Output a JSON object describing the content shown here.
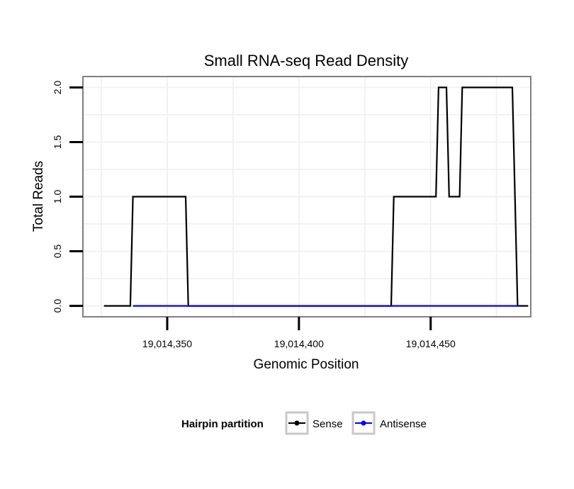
{
  "chart_data": {
    "type": "line",
    "title": "Small RNA-seq Read Density",
    "xlabel": "Genomic Position",
    "ylabel": "Total Reads",
    "xlim": [
      19014318,
      19014488
    ],
    "ylim": [
      -0.1,
      2.1
    ],
    "xticks": [
      19014350,
      19014400,
      19014450
    ],
    "xtick_labels": [
      "19,014,350",
      "19,014,400",
      "19,014,450"
    ],
    "yticks": [
      0,
      0.5,
      1,
      1.5,
      2
    ],
    "ytick_labels": [
      "0.0",
      "0.5",
      "1.0",
      "1.5",
      "2.0"
    ],
    "grid": true,
    "legend": {
      "title": "Hairpin partition",
      "position": "bottom",
      "entries": [
        "Sense",
        "Antisense"
      ]
    },
    "series": [
      {
        "name": "Sense",
        "color": "#000000",
        "x": [
          19014326,
          19014336,
          19014337,
          19014357,
          19014358,
          19014435,
          19014436,
          19014452,
          19014453,
          19014456,
          19014457,
          19014461,
          19014462,
          19014481,
          19014483,
          19014487
        ],
        "y": [
          0,
          0,
          1,
          1,
          0,
          0,
          1,
          1,
          2,
          2,
          1,
          1,
          2,
          2,
          0,
          0
        ]
      },
      {
        "name": "Antisense",
        "color": "#0000ff",
        "x": [
          19014337,
          19014358,
          19014435,
          19014483
        ],
        "y": [
          0,
          0,
          0,
          0
        ]
      }
    ]
  }
}
